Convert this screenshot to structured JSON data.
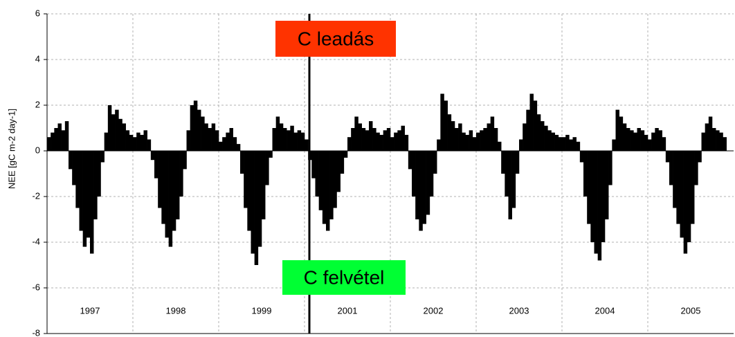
{
  "chart_data": {
    "type": "bar",
    "y_label": "NEE [gC m-2 day-1]",
    "annotations": [
      "C leadás",
      "C felvétel"
    ],
    "categories": [
      "1997",
      "1998",
      "1999",
      "2001",
      "2002",
      "2003",
      "2004",
      "2005"
    ],
    "values": [
      [
        0.6,
        0.8,
        1.0,
        1.2,
        0.9,
        1.3,
        -0.8,
        -1.5,
        -2.5,
        -3.5,
        -4.2,
        -3.8,
        -4.5,
        -3.0,
        -2.0,
        -0.5,
        0.8,
        2.0,
        1.6,
        1.8,
        1.4,
        1.2,
        0.9,
        0.7
      ],
      [
        0.6,
        0.8,
        0.7,
        0.9,
        0.5,
        -0.4,
        -1.2,
        -2.5,
        -3.2,
        -3.8,
        -4.2,
        -3.5,
        -3.0,
        -2.0,
        -0.8,
        0.9,
        2.0,
        2.2,
        1.8,
        1.5,
        1.2,
        1.0,
        1.2,
        0.9
      ],
      [
        0.4,
        0.6,
        0.8,
        1.0,
        0.6,
        0.3,
        -1.0,
        -2.5,
        -3.5,
        -4.5,
        -5.0,
        -4.2,
        -3.0,
        -1.5,
        -0.3,
        1.0,
        1.5,
        1.2,
        1.0,
        0.9,
        1.1,
        0.8,
        0.9,
        0.8
      ],
      [
        0.5,
        -0.4,
        -1.2,
        -2.0,
        -2.6,
        -3.2,
        -3.5,
        -3.0,
        -2.5,
        -1.8,
        -1.0,
        -0.3,
        0.6,
        1.0,
        1.5,
        1.2,
        1.0,
        0.9,
        1.3,
        1.0,
        0.8,
        0.7,
        0.9,
        1.0
      ],
      [
        0.6,
        0.8,
        0.9,
        1.1,
        0.7,
        -0.8,
        -2.0,
        -3.0,
        -3.5,
        -3.2,
        -2.8,
        -2.0,
        -1.0,
        0.5,
        2.5,
        2.2,
        1.6,
        1.3,
        1.0,
        1.2,
        0.8,
        0.7,
        0.9,
        0.6
      ],
      [
        0.8,
        0.9,
        1.0,
        1.2,
        1.5,
        1.0,
        0.4,
        -1.0,
        -2.0,
        -3.0,
        -2.5,
        -1.0,
        0.5,
        1.2,
        1.8,
        2.5,
        2.2,
        1.6,
        1.3,
        1.1,
        0.9,
        0.8,
        0.7,
        0.6
      ],
      [
        0.6,
        0.7,
        0.5,
        0.6,
        0.4,
        -0.5,
        -2.0,
        -3.2,
        -4.0,
        -4.5,
        -4.8,
        -4.0,
        -3.0,
        -1.5,
        0.5,
        1.8,
        1.5,
        1.2,
        1.0,
        0.9,
        0.8,
        1.0,
        0.9,
        0.7
      ],
      [
        0.5,
        0.8,
        1.0,
        0.9,
        0.6,
        -0.5,
        -1.5,
        -2.5,
        -3.2,
        -3.8,
        -4.5,
        -4.0,
        -3.2,
        -1.5,
        -0.5,
        0.8,
        1.2,
        1.5,
        1.0,
        0.9,
        0.8,
        0.6
      ]
    ],
    "color": "#000000",
    "ylim": [
      -8,
      6
    ],
    "yticks": [
      -8,
      -6,
      -4,
      -2,
      0,
      2,
      4,
      6
    ],
    "grid": true
  }
}
